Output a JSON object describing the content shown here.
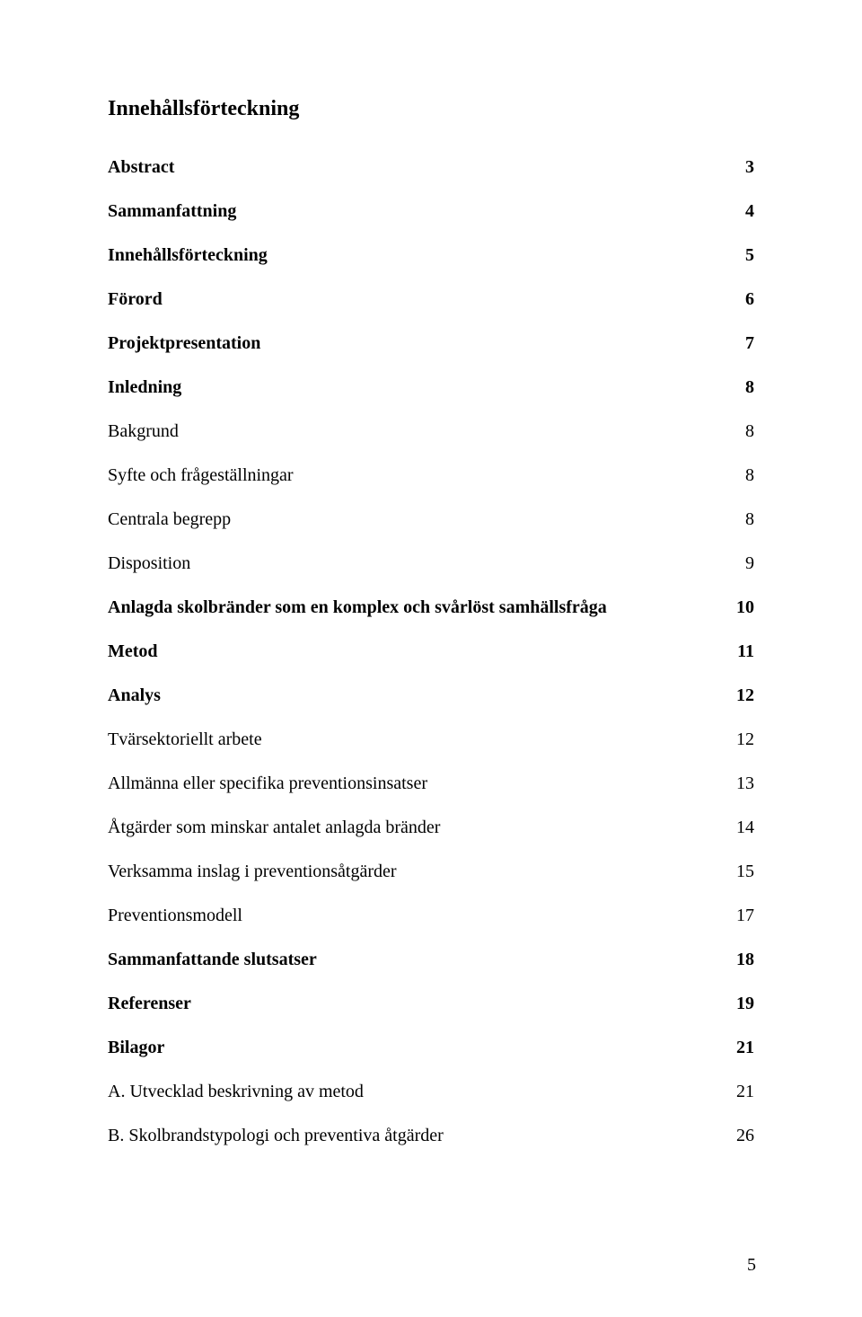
{
  "title": "Innehållsförteckning",
  "toc": [
    {
      "label": "Abstract",
      "page": "3",
      "bold": true
    },
    {
      "label": "Sammanfattning",
      "page": "4",
      "bold": true
    },
    {
      "label": "Innehållsförteckning",
      "page": "5",
      "bold": true
    },
    {
      "label": "Förord",
      "page": "6",
      "bold": true
    },
    {
      "label": "Projektpresentation",
      "page": "7",
      "bold": true
    },
    {
      "label": "Inledning",
      "page": "8",
      "bold": true
    },
    {
      "label": "Bakgrund",
      "page": "8",
      "bold": false
    },
    {
      "label": "Syfte och frågeställningar",
      "page": "8",
      "bold": false
    },
    {
      "label": "Centrala begrepp",
      "page": "8",
      "bold": false
    },
    {
      "label": "Disposition",
      "page": "9",
      "bold": false
    },
    {
      "label": "Anlagda skolbränder som en komplex och svårlöst samhällsfråga",
      "page": "10",
      "bold": true
    },
    {
      "label": "Metod",
      "page": "11",
      "bold": true
    },
    {
      "label": "Analys",
      "page": "12",
      "bold": true
    },
    {
      "label": "Tvärsektoriellt arbete",
      "page": "12",
      "bold": false
    },
    {
      "label": "Allmänna eller specifika preventionsinsatser",
      "page": "13",
      "bold": false
    },
    {
      "label": "Åtgärder som minskar antalet anlagda bränder",
      "page": "14",
      "bold": false
    },
    {
      "label": "Verksamma inslag i preventionsåtgärder",
      "page": "15",
      "bold": false
    },
    {
      "label": "Preventionsmodell",
      "page": "17",
      "bold": false
    },
    {
      "label": "Sammanfattande slutsatser",
      "page": "18",
      "bold": true
    },
    {
      "label": "Referenser",
      "page": "19",
      "bold": true
    },
    {
      "label": "Bilagor",
      "page": "21",
      "bold": true
    },
    {
      "label": "A. Utvecklad beskrivning av metod",
      "page": "21",
      "bold": false
    },
    {
      "label": "B. Skolbrandstypologi och preventiva åtgärder",
      "page": "26",
      "bold": false
    }
  ],
  "page_number": "5"
}
